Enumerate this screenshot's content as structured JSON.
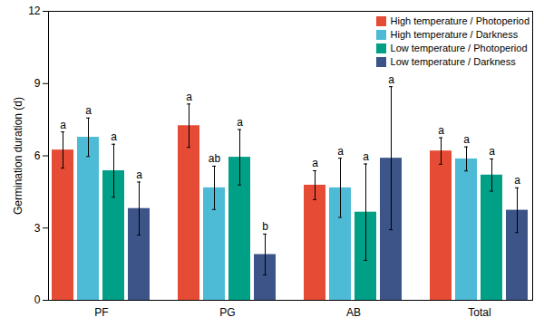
{
  "chart_data": {
    "type": "bar",
    "y_label": "Germination duration (d)",
    "categories": [
      "PF",
      "PG",
      "AB",
      "Total"
    ],
    "series": [
      {
        "name": "High temperature / Photoperiod",
        "color": "#e64b35",
        "values": [
          6.24,
          7.25,
          4.78,
          6.2
        ],
        "errors": [
          0.75,
          0.9,
          0.6,
          0.55
        ],
        "letters": [
          "a",
          "a",
          "a",
          "a"
        ]
      },
      {
        "name": "High temperature / Darkness",
        "color": "#4dbbd5",
        "values": [
          6.77,
          4.67,
          4.67,
          5.87
        ],
        "errors": [
          0.8,
          0.9,
          1.23,
          0.5
        ],
        "letters": [
          "a",
          "ab",
          "a",
          "a"
        ]
      },
      {
        "name": "Low temperature / Photoperiod",
        "color": "#00a087",
        "values": [
          5.38,
          5.94,
          3.66,
          5.2
        ],
        "errors": [
          1.1,
          1.15,
          2.0,
          0.67
        ],
        "letters": [
          "a",
          "a",
          "a",
          "a"
        ]
      },
      {
        "name": "Low temperature / Darkness",
        "color": "#3c5488",
        "values": [
          3.81,
          1.9,
          5.9,
          3.74
        ],
        "errors": [
          1.1,
          0.85,
          2.97,
          0.93
        ],
        "letters": [
          "a",
          "b",
          "a",
          "a"
        ]
      }
    ],
    "ylim": [
      0,
      12
    ],
    "yticks": [
      0,
      3,
      6,
      9,
      12
    ],
    "grid": false,
    "legend": "top-right"
  }
}
